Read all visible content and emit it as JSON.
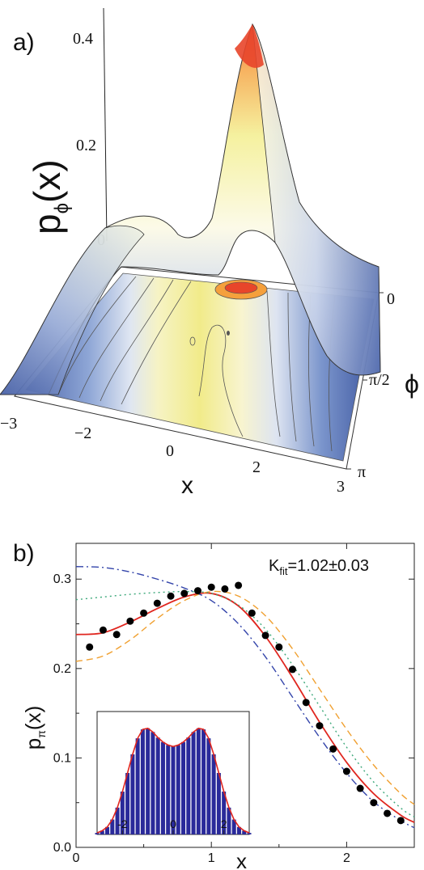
{
  "panel_a": {
    "label": "a)",
    "z_axis_label_main": "p",
    "z_axis_label_sub": "ϕ",
    "z_axis_label_tail": "(x)",
    "z_ticks": [
      "0.4",
      "0.2",
      "0"
    ],
    "x_ticks": [
      "−3",
      "−2",
      "0",
      "2",
      "3"
    ],
    "x_label": "x",
    "phi_ticks": [
      "0",
      "π/2",
      "π"
    ],
    "phi_label": "ϕ",
    "colors": {
      "peak": "#e8452a",
      "high": "#f3ee8a",
      "mid": "#ffffff",
      "low": "#4a63a8"
    }
  },
  "chart_data": [
    {
      "type": "surface",
      "x_range": [
        -3,
        3
      ],
      "phi_range": [
        "0",
        "π"
      ],
      "z_range": [
        0,
        0.45
      ],
      "z_ticks": [
        0,
        0.2,
        0.4
      ],
      "peak": {
        "x": 0.9,
        "phi": "0",
        "z": 0.42
      }
    },
    {
      "type": "line",
      "x_range": [
        0,
        2.5
      ],
      "ylim": [
        0,
        0.34
      ],
      "x_ticks": [
        "0",
        "1",
        "2"
      ],
      "y_ticks": [
        "0.0",
        "0.1",
        "0.2",
        "0.3"
      ],
      "xlabel": "x",
      "ylabel_main": "p",
      "ylabel_sub": "π",
      "ylabel_tail": "(x)",
      "annotation_main": "K",
      "annotation_sub": "fit",
      "annotation_tail": "=1.02±0.03",
      "points": {
        "x": [
          0.1,
          0.2,
          0.3,
          0.4,
          0.5,
          0.6,
          0.7,
          0.8,
          0.9,
          1.0,
          1.1,
          1.2,
          1.3,
          1.4,
          1.5,
          1.6,
          1.7,
          1.8,
          1.9,
          2.0,
          2.1,
          2.2,
          2.3,
          2.4
        ],
        "y": [
          0.224,
          0.243,
          0.238,
          0.253,
          0.262,
          0.273,
          0.281,
          0.284,
          0.287,
          0.291,
          0.289,
          0.293,
          0.262,
          0.237,
          0.224,
          0.199,
          0.162,
          0.136,
          0.11,
          0.085,
          0.066,
          0.05,
          0.038,
          0.03
        ]
      },
      "series": [
        {
          "style": "solid",
          "color": "#e0261f",
          "x": [
            0,
            0.2,
            0.4,
            0.6,
            0.8,
            1.0,
            1.2,
            1.4,
            1.6,
            1.8,
            2.0,
            2.2,
            2.4,
            2.5
          ],
          "y": [
            0.238,
            0.24,
            0.252,
            0.267,
            0.28,
            0.284,
            0.27,
            0.236,
            0.19,
            0.14,
            0.095,
            0.06,
            0.036,
            0.028
          ]
        },
        {
          "style": "dashed",
          "color": "#f0a030",
          "x": [
            0,
            0.2,
            0.4,
            0.6,
            0.8,
            1.0,
            1.2,
            1.4,
            1.6,
            1.8,
            2.0,
            2.2,
            2.4,
            2.5
          ],
          "y": [
            0.208,
            0.214,
            0.232,
            0.256,
            0.276,
            0.286,
            0.281,
            0.259,
            0.222,
            0.177,
            0.132,
            0.092,
            0.06,
            0.048
          ]
        },
        {
          "style": "dotted",
          "color": "#3ca87a",
          "x": [
            0,
            0.2,
            0.4,
            0.6,
            0.8,
            1.0,
            1.2,
            1.4,
            1.6,
            1.8,
            2.0,
            2.2,
            2.4,
            2.5
          ],
          "y": [
            0.277,
            0.28,
            0.283,
            0.285,
            0.286,
            0.284,
            0.271,
            0.244,
            0.204,
            0.158,
            0.112,
            0.073,
            0.044,
            0.034
          ]
        },
        {
          "style": "dashdot",
          "color": "#3344aa",
          "x": [
            0,
            0.2,
            0.4,
            0.6,
            0.8,
            1.0,
            1.2,
            1.4,
            1.6,
            1.8,
            2.0,
            2.2,
            2.4,
            2.5
          ],
          "y": [
            0.314,
            0.313,
            0.308,
            0.3,
            0.29,
            0.276,
            0.25,
            0.213,
            0.168,
            0.123,
            0.083,
            0.051,
            0.03,
            0.022
          ]
        }
      ]
    },
    {
      "type": "bar",
      "x_range": [
        -3,
        3
      ],
      "ylim": [
        0,
        0.33
      ],
      "x_ticks": [
        "-2",
        "0",
        "2"
      ],
      "bar_color": "#2a2a9a",
      "fit_color": "#e0261f",
      "bins": [
        -3.0,
        -2.8,
        -2.6,
        -2.4,
        -2.2,
        -2.0,
        -1.8,
        -1.6,
        -1.4,
        -1.2,
        -1.0,
        -0.8,
        -0.6,
        -0.4,
        -0.2,
        0.0,
        0.2,
        0.4,
        0.6,
        0.8,
        1.0,
        1.2,
        1.4,
        1.6,
        1.8,
        2.0,
        2.2,
        2.4,
        2.6,
        2.8,
        3.0
      ],
      "values": [
        0.004,
        0.01,
        0.02,
        0.04,
        0.072,
        0.115,
        0.165,
        0.215,
        0.258,
        0.282,
        0.285,
        0.275,
        0.26,
        0.248,
        0.24,
        0.236,
        0.24,
        0.248,
        0.26,
        0.275,
        0.285,
        0.282,
        0.258,
        0.215,
        0.165,
        0.115,
        0.072,
        0.04,
        0.02,
        0.01,
        0.004
      ]
    }
  ],
  "panel_b": {
    "label": "b)"
  }
}
